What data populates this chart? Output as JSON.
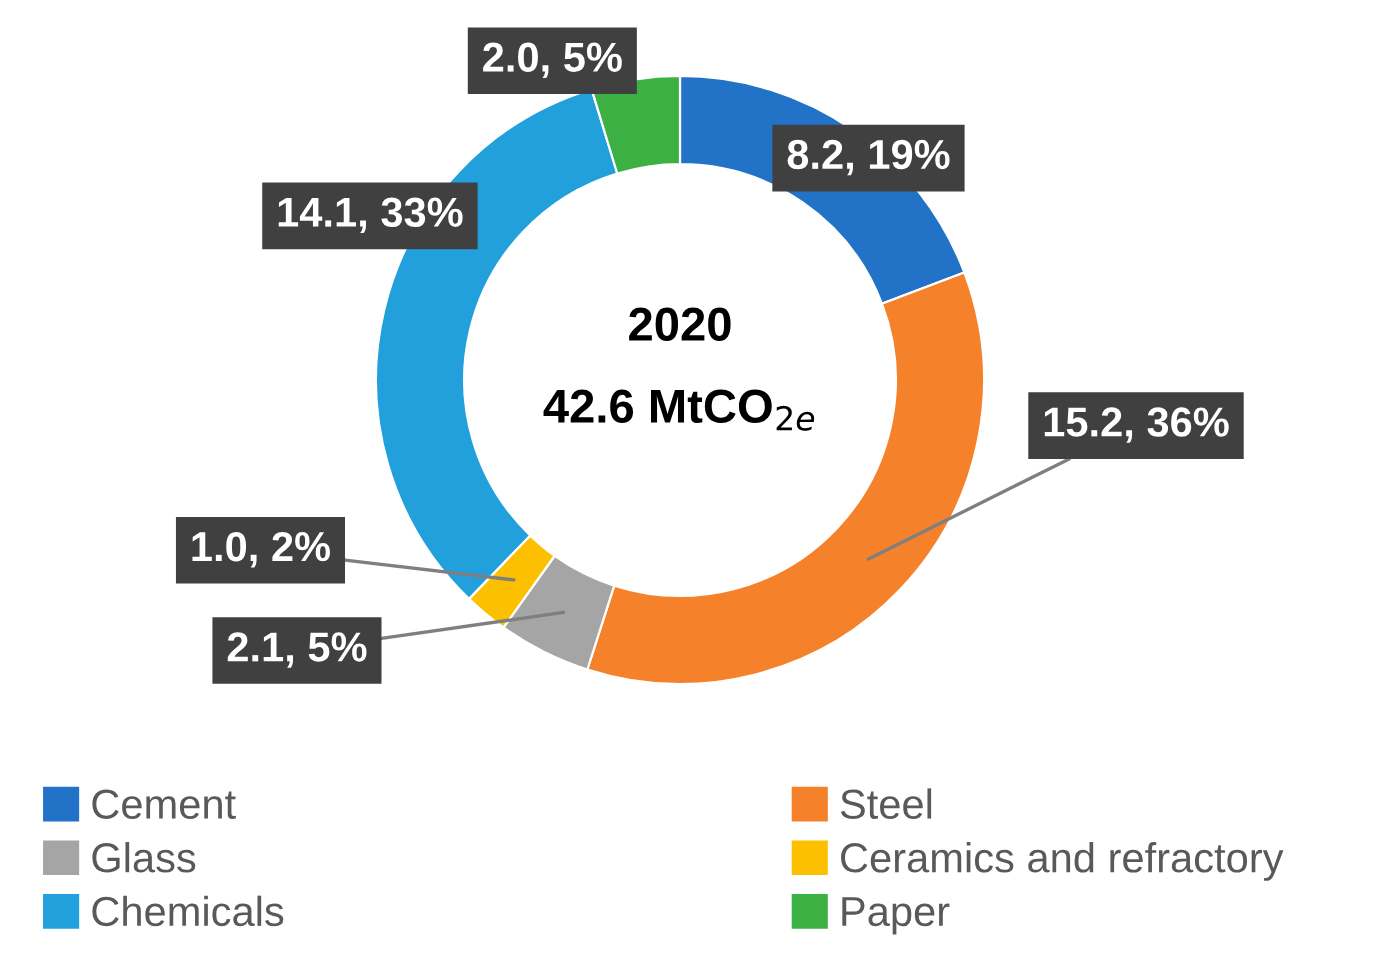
{
  "chart_data": {
    "type": "donut",
    "title": "2020",
    "annotations": [
      "42.6 MtCO$_{2e}$"
    ],
    "categories": [
      "Cement",
      "Steel",
      "Glass",
      "Ceramics and refractory",
      "Chemicals",
      "Paper"
    ],
    "values": [
      8.2,
      15.2,
      2.1,
      1.0,
      14.1,
      2.0
    ],
    "colors": [
      "#2272c8",
      "#f5822a",
      "#a5a5a5",
      "#fcc000",
      "#22a0dc",
      "#3cb043"
    ],
    "value_labels": [
      "8.2, 19%",
      "15.2, 36%",
      "2.1, 5%",
      "1.0, 2%",
      "14.1, 33%",
      "2.0, 5%"
    ],
    "legend": "bottom"
  }
}
